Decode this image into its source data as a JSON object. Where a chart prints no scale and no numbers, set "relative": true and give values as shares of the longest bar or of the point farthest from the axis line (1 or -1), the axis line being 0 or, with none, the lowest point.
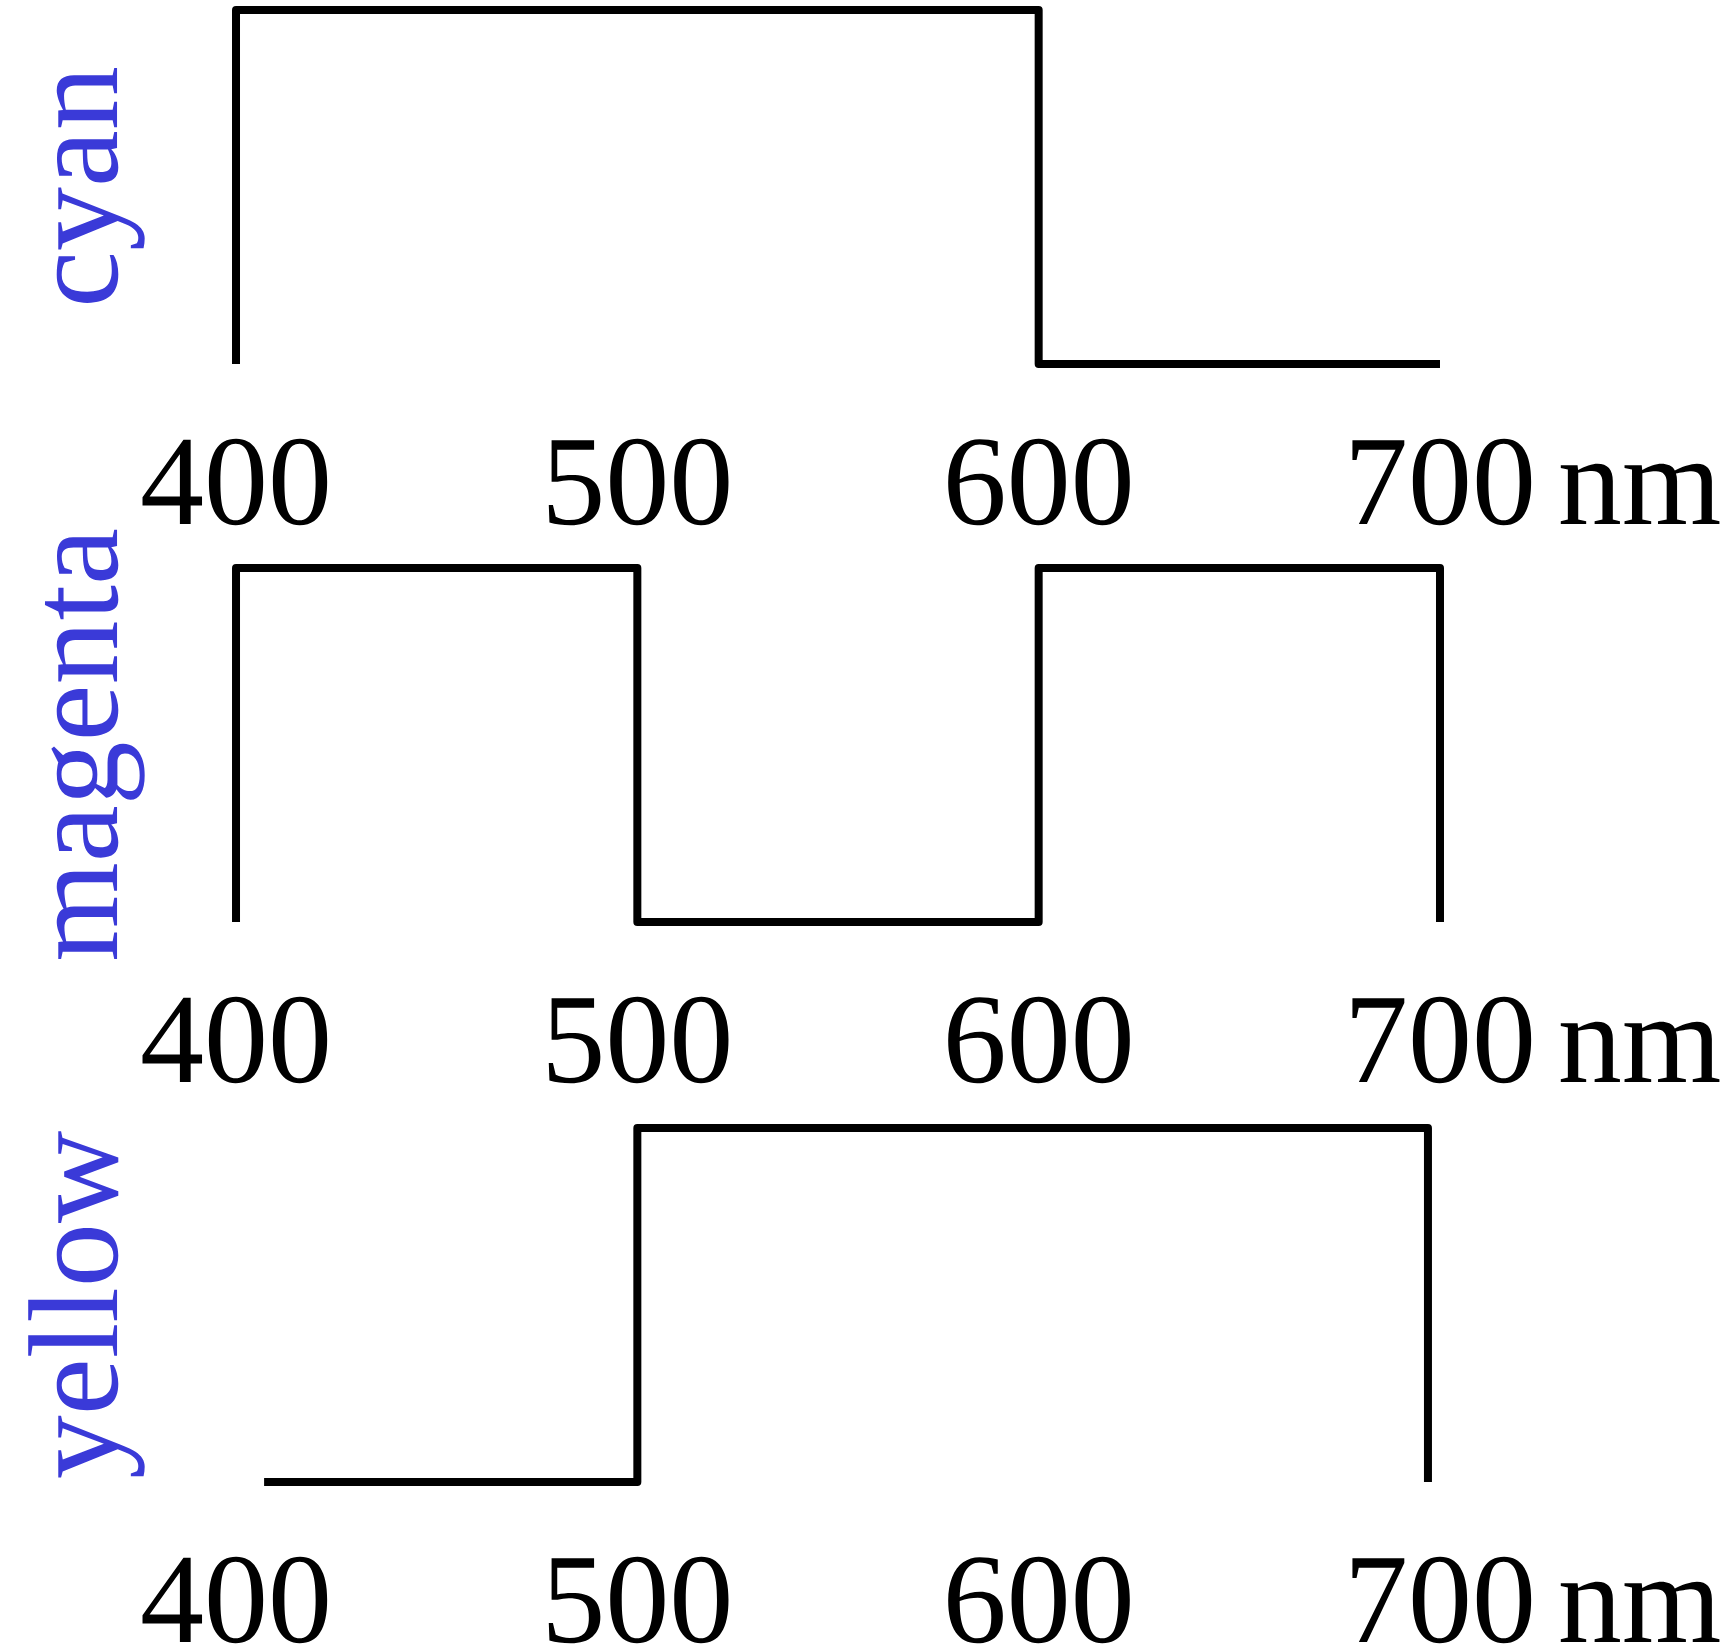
{
  "chart_data": [
    {
      "type": "line",
      "ylabel": "cyan",
      "xlabel": "nm",
      "relative": true,
      "xlim": [
        400,
        700
      ],
      "xticks": [
        400,
        500,
        600,
        700
      ],
      "series": [
        {
          "color": "#000000",
          "x": [
            400,
            400,
            600,
            600,
            700
          ],
          "values": [
            0,
            1,
            1,
            0,
            0
          ]
        }
      ]
    },
    {
      "type": "line",
      "ylabel": "magenta",
      "xlabel": "nm",
      "relative": true,
      "xlim": [
        400,
        700
      ],
      "xticks": [
        400,
        500,
        600,
        700
      ],
      "series": [
        {
          "color": "#000000",
          "x": [
            400,
            400,
            500,
            500,
            600,
            600,
            700,
            700
          ],
          "values": [
            0,
            1,
            1,
            0,
            0,
            1,
            1,
            0
          ]
        }
      ]
    },
    {
      "type": "line",
      "ylabel": "yellow",
      "xlabel": "nm",
      "relative": true,
      "xlim": [
        400,
        700
      ],
      "xticks": [
        400,
        500,
        600,
        700
      ],
      "series": [
        {
          "color": "#000000",
          "x": [
            407,
            500,
            500,
            697,
            697
          ],
          "values": [
            0,
            0,
            1,
            1,
            0
          ]
        }
      ]
    }
  ]
}
